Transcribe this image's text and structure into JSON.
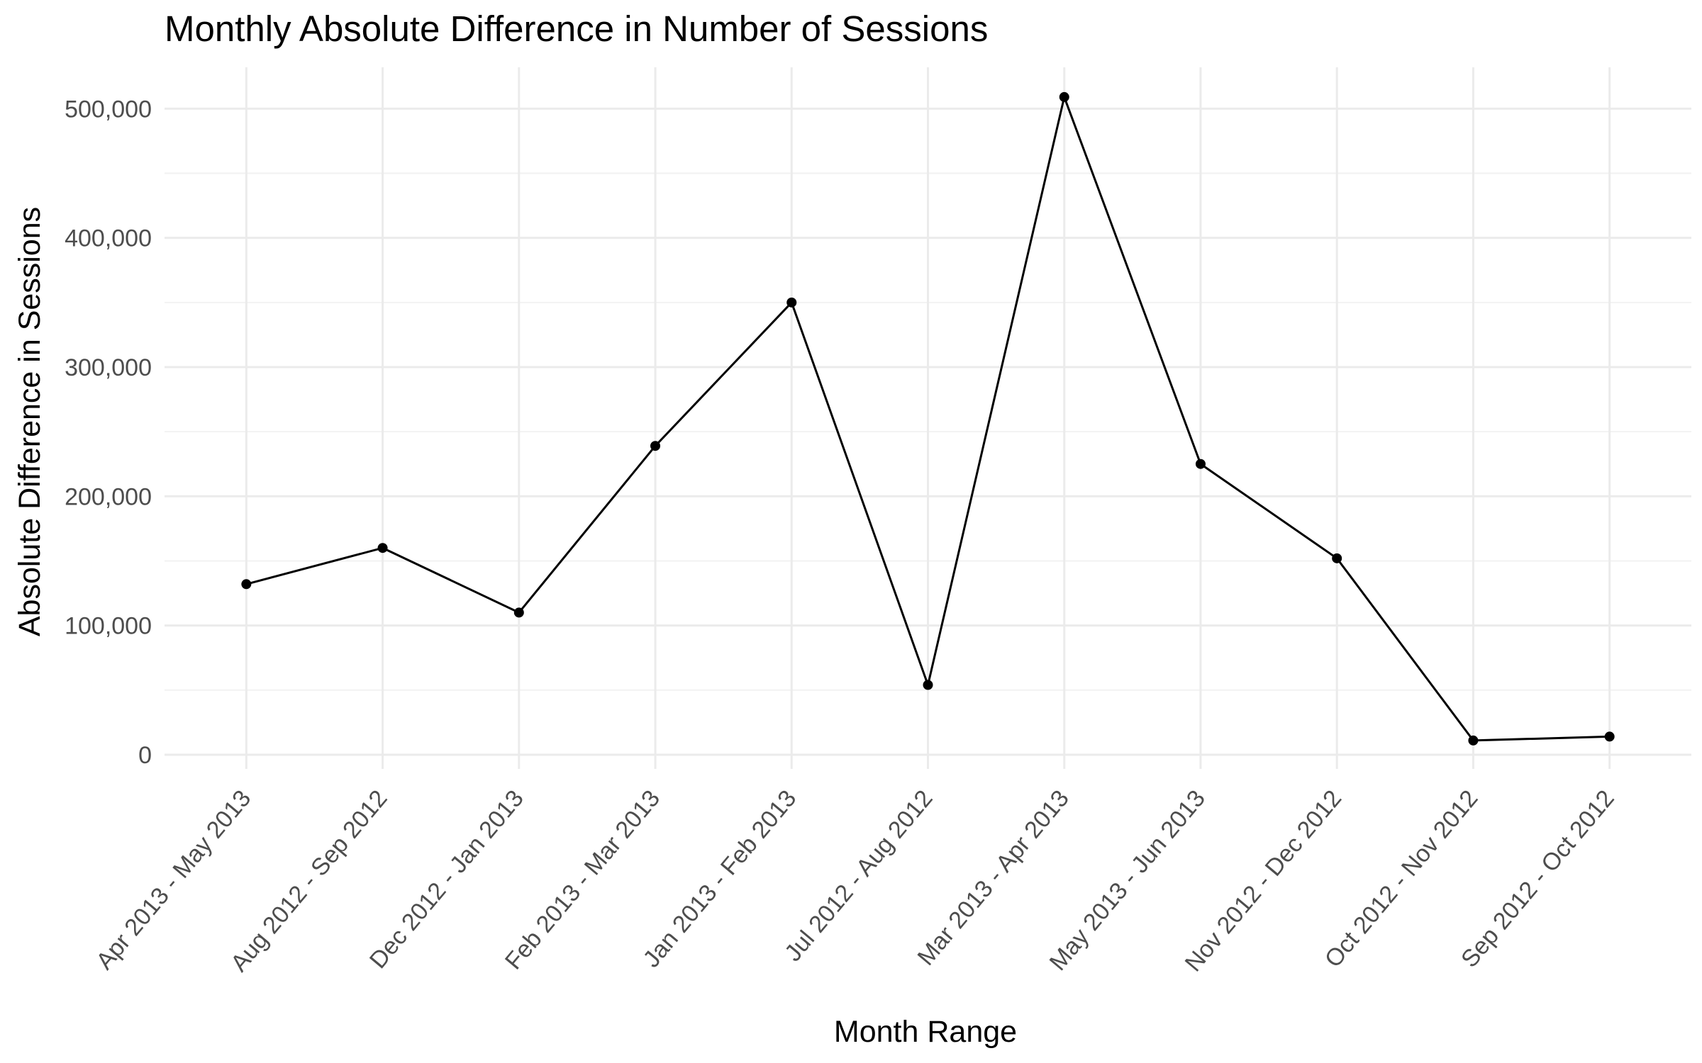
{
  "chart_data": {
    "type": "line",
    "title": "Monthly Absolute Difference in Number of Sessions",
    "xlabel": "Month Range",
    "ylabel": "Absolute Difference in Sessions",
    "categories": [
      "Apr 2013 - May 2013",
      "Aug 2012 - Sep 2012",
      "Dec 2012 - Jan 2013",
      "Feb 2013 - Mar 2013",
      "Jan 2013 - Feb 2013",
      "Jul 2012 - Aug 2012",
      "Mar 2013 - Apr 2013",
      "May 2013 - Jun 2013",
      "Nov 2012 - Dec 2012",
      "Oct 2012 - Nov 2012",
      "Sep 2012 - Oct 2012"
    ],
    "values": [
      132000,
      160000,
      110000,
      239000,
      350000,
      54000,
      509000,
      225000,
      152000,
      11000,
      14000
    ],
    "y_ticks": [
      0,
      100000,
      200000,
      300000,
      400000,
      500000
    ],
    "y_tick_labels": [
      "0",
      "100,000",
      "200,000",
      "300,000",
      "400,000",
      "500,000"
    ],
    "ylim": [
      -11000,
      532000
    ],
    "grid": true,
    "legend": "none",
    "line_color": "#000000"
  }
}
